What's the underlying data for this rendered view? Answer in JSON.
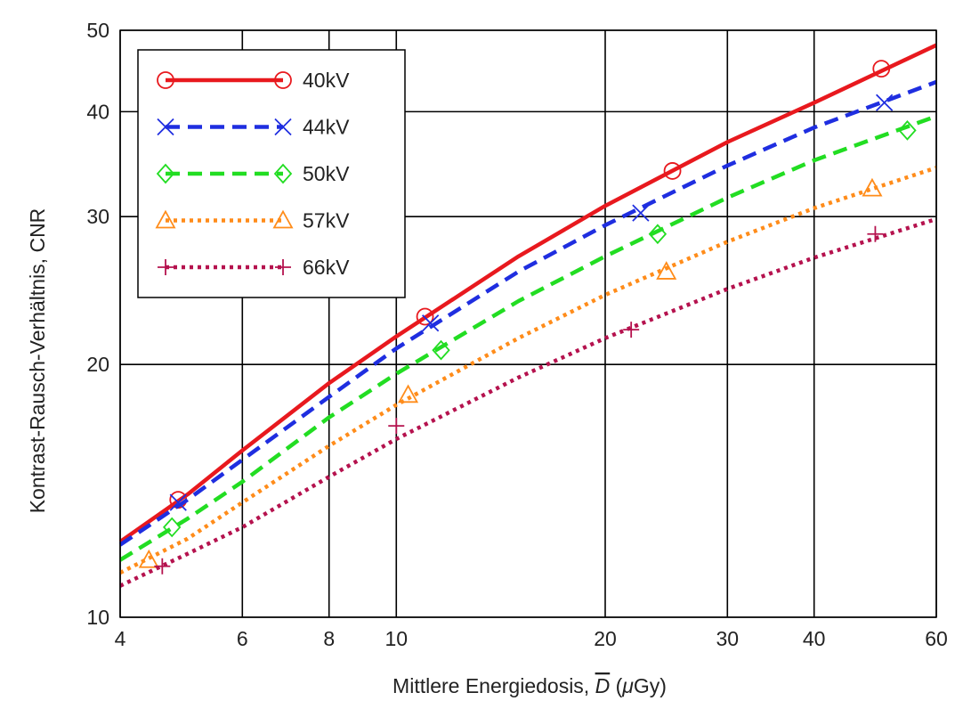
{
  "chart_data": {
    "type": "line",
    "xscale": "log",
    "yscale": "log",
    "xlim": [
      4,
      60
    ],
    "ylim": [
      10,
      50
    ],
    "xticks": [
      4,
      6,
      8,
      10,
      20,
      30,
      40,
      60
    ],
    "yticks": [
      10,
      20,
      30,
      40,
      50
    ],
    "xlabel_prefix": "Mittlere Energiedosis, ",
    "xlabel_symbol": "D",
    "xlabel_suffix_open": " (",
    "xlabel_mu": "μ",
    "xlabel_unit": "Gy)",
    "ylabel": "Kontrast-Rausch-Verhältnis, CNR",
    "grid": true,
    "legend_position": "top-left",
    "series": [
      {
        "name": "40kV",
        "color": "#e8191e",
        "dash": "solid",
        "marker": "circle",
        "x": [
          4,
          5,
          6,
          8,
          10,
          15,
          20,
          30,
          40,
          60
        ],
        "y": [
          12.3,
          14.0,
          15.8,
          19.0,
          21.6,
          26.9,
          30.9,
          36.8,
          41.0,
          48.0
        ],
        "markers_x": [
          4.85,
          11.0,
          25.0,
          50.0
        ],
        "markers_y": [
          13.8,
          22.8,
          34.0,
          45.0
        ]
      },
      {
        "name": "44kV",
        "color": "#1f2ee0",
        "dash": "dashed",
        "marker": "x",
        "x": [
          4,
          5,
          6,
          8,
          10,
          15,
          20,
          30,
          40,
          60
        ],
        "y": [
          12.2,
          13.8,
          15.4,
          18.3,
          20.9,
          25.8,
          29.3,
          34.5,
          38.3,
          43.4
        ],
        "markers_x": [
          4.85,
          11.2,
          22.5,
          50.5
        ],
        "markers_y": [
          13.7,
          22.4,
          30.3,
          41.0
        ]
      },
      {
        "name": "50kV",
        "color": "#22dd22",
        "dash": "dashed",
        "marker": "diamond",
        "x": [
          4,
          5,
          6,
          8,
          10,
          15,
          20,
          30,
          40,
          60
        ],
        "y": [
          11.7,
          13.1,
          14.5,
          17.3,
          19.5,
          23.8,
          26.9,
          31.6,
          35.0,
          39.5
        ],
        "markers_x": [
          4.75,
          11.6,
          23.8,
          54.5
        ],
        "markers_y": [
          12.8,
          20.8,
          28.6,
          38.0
        ]
      },
      {
        "name": "57kV",
        "color": "#ff8c1a",
        "dash": "dotted",
        "marker": "triangle",
        "x": [
          4,
          5,
          6,
          8,
          10,
          15,
          20,
          30,
          40,
          60
        ],
        "y": [
          11.3,
          12.4,
          13.7,
          16.0,
          17.9,
          21.5,
          24.2,
          28.0,
          30.7,
          34.3
        ],
        "markers_x": [
          4.4,
          10.4,
          24.5,
          48.5
        ],
        "markers_y": [
          11.7,
          18.4,
          25.8,
          32.4
        ]
      },
      {
        "name": "66kV",
        "color": "#b5124e",
        "dash": "dotted",
        "marker": "plus",
        "x": [
          4,
          5,
          6,
          8,
          10,
          15,
          20,
          30,
          40,
          60
        ],
        "y": [
          10.9,
          11.9,
          12.8,
          14.7,
          16.3,
          19.3,
          21.5,
          24.6,
          26.8,
          29.8
        ],
        "markers_x": [
          4.6,
          10.0,
          21.8,
          49.0
        ],
        "markers_y": [
          11.5,
          16.9,
          22.0,
          28.6
        ]
      }
    ]
  }
}
